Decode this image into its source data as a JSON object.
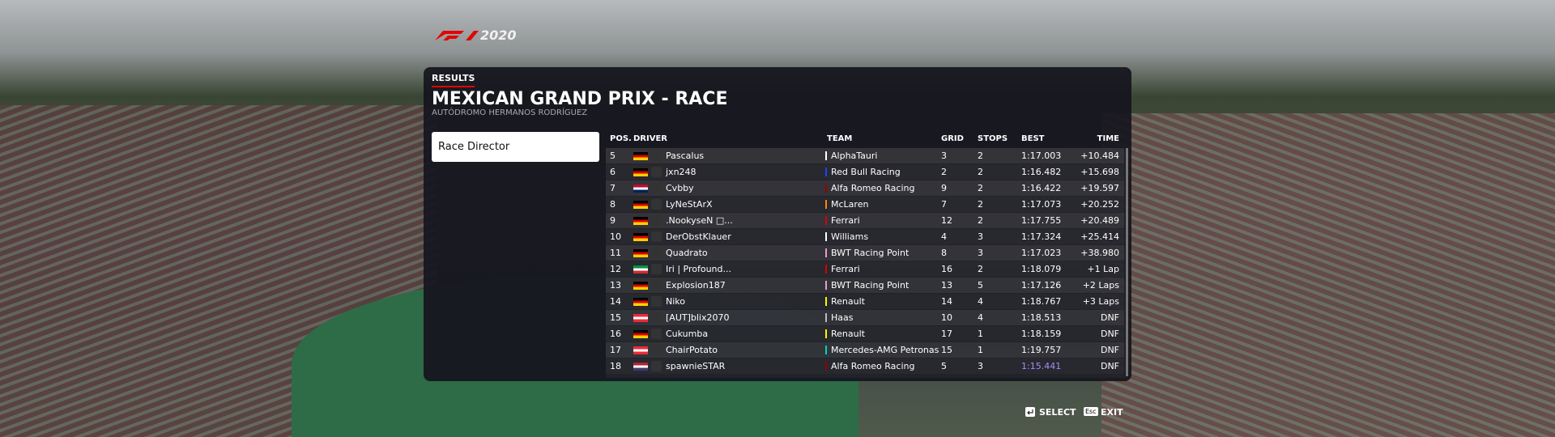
{
  "logo": {
    "year": "2020"
  },
  "header": {
    "section": "RESULTS",
    "title": "MEXICAN GRAND PRIX - RACE",
    "subtitle": "AUTÓDROMO HERMANOS RODRÍGUEZ"
  },
  "menu": {
    "items": [
      "Race Director"
    ]
  },
  "table": {
    "columns": [
      "POS.",
      "DRIVER",
      "TEAM",
      "GRID",
      "STOPS",
      "BEST",
      "TIME"
    ],
    "rows": [
      {
        "pos": "5",
        "driver": "Pascalus",
        "team": "AlphaTauri",
        "team_color": "#ffffff",
        "flag": [
          "#000000",
          "#dd0000",
          "#ffce00"
        ],
        "grid": "3",
        "stops": "2",
        "best": "1:17.003",
        "time": "+10.484"
      },
      {
        "pos": "6",
        "driver": "jxn248",
        "team": "Red Bull Racing",
        "team_color": "#1e41ff",
        "flag": [
          "#000000",
          "#dd0000",
          "#ffce00"
        ],
        "grid": "2",
        "stops": "2",
        "best": "1:16.482",
        "time": "+15.698"
      },
      {
        "pos": "7",
        "driver": "Cvbby",
        "team": "Alfa Romeo Racing",
        "team_color": "#9b0000",
        "flag": [
          "#ba0c2f",
          "#ffffff",
          "#00205b"
        ],
        "grid": "9",
        "stops": "2",
        "best": "1:16.422",
        "time": "+19.597"
      },
      {
        "pos": "8",
        "driver": "LyNeStArX",
        "team": "McLaren",
        "team_color": "#ff8700",
        "flag": [
          "#000000",
          "#dd0000",
          "#ffce00"
        ],
        "grid": "7",
        "stops": "2",
        "best": "1:17.073",
        "time": "+20.252"
      },
      {
        "pos": "9",
        "driver": ".NookyseN □...",
        "team": "Ferrari",
        "team_color": "#dc0000",
        "flag": [
          "#000000",
          "#dd0000",
          "#ffce00"
        ],
        "grid": "12",
        "stops": "2",
        "best": "1:17.755",
        "time": "+20.489"
      },
      {
        "pos": "10",
        "driver": "DerObstKlauer",
        "team": "Williams",
        "team_color": "#ffffff",
        "flag": [
          "#000000",
          "#dd0000",
          "#ffce00"
        ],
        "grid": "4",
        "stops": "3",
        "best": "1:17.324",
        "time": "+25.414"
      },
      {
        "pos": "11",
        "driver": "Quadrato",
        "team": "BWT Racing Point",
        "team_color": "#f596c8",
        "flag": [
          "#000000",
          "#dd0000",
          "#ffce00"
        ],
        "grid": "8",
        "stops": "3",
        "best": "1:17.023",
        "time": "+38.980"
      },
      {
        "pos": "12",
        "driver": "Iri | Profound...",
        "team": "Ferrari",
        "team_color": "#dc0000",
        "flag": [
          "#009246",
          "#ffffff",
          "#ce2b37"
        ],
        "grid": "16",
        "stops": "2",
        "best": "1:18.079",
        "time": "+1 Lap"
      },
      {
        "pos": "13",
        "driver": "Explosion187",
        "team": "BWT Racing Point",
        "team_color": "#f596c8",
        "flag": [
          "#000000",
          "#dd0000",
          "#ffce00"
        ],
        "grid": "13",
        "stops": "5",
        "best": "1:17.126",
        "time": "+2 Laps"
      },
      {
        "pos": "14",
        "driver": "Niko",
        "team": "Renault",
        "team_color": "#fff500",
        "flag": [
          "#000000",
          "#dd0000",
          "#ffce00"
        ],
        "grid": "14",
        "stops": "4",
        "best": "1:18.767",
        "time": "+3 Laps"
      },
      {
        "pos": "15",
        "driver": "[AUT]blix2070",
        "team": "Haas",
        "team_color": "#bbbbbb",
        "flag": [
          "#ed2939",
          "#ffffff",
          "#ed2939"
        ],
        "grid": "10",
        "stops": "4",
        "best": "1:18.513",
        "time": "DNF"
      },
      {
        "pos": "16",
        "driver": "Cukumba",
        "team": "Renault",
        "team_color": "#fff500",
        "flag": [
          "#000000",
          "#dd0000",
          "#ffce00"
        ],
        "grid": "17",
        "stops": "1",
        "best": "1:18.159",
        "time": "DNF"
      },
      {
        "pos": "17",
        "driver": "ChairPotato",
        "team": "Mercedes-AMG Petronas",
        "team_color": "#00d2be",
        "flag": [
          "#ed2939",
          "#ffffff",
          "#ed2939"
        ],
        "grid": "15",
        "stops": "1",
        "best": "1:19.757",
        "time": "DNF"
      },
      {
        "pos": "18",
        "driver": "spawnieSTAR",
        "team": "Alfa Romeo Racing",
        "team_color": "#9b0000",
        "flag": [
          "#b22234",
          "#ffffff",
          "#3c3b6e"
        ],
        "grid": "5",
        "stops": "3",
        "best": "1:15.441",
        "best_color": "#a78bfa",
        "time": "DNF"
      }
    ]
  },
  "footer": {
    "select": "SELECT",
    "exit_key": "Esc",
    "exit": "EXIT"
  }
}
